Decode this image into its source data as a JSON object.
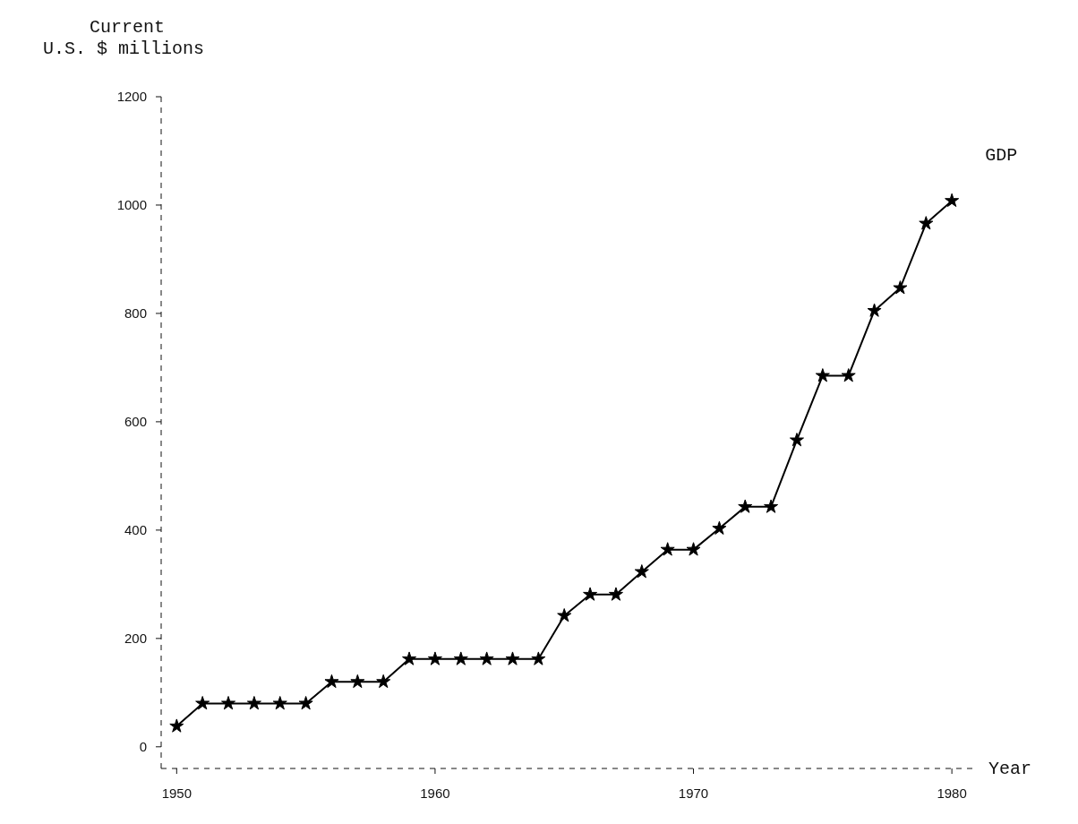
{
  "chart_data": {
    "type": "line",
    "ylabel": "Current\nU.S. $ millions",
    "xlabel": "Year",
    "x": [
      1950,
      1951,
      1952,
      1953,
      1954,
      1955,
      1956,
      1957,
      1958,
      1959,
      1960,
      1961,
      1962,
      1963,
      1964,
      1965,
      1966,
      1967,
      1968,
      1969,
      1970,
      1971,
      1972,
      1973,
      1974,
      1975,
      1976,
      1977,
      1978,
      1979,
      1980
    ],
    "series": [
      {
        "name": "GDP",
        "color": "#000000",
        "values": [
          38,
          80,
          80,
          80,
          80,
          80,
          120,
          120,
          120,
          162,
          162,
          162,
          162,
          162,
          162,
          242,
          281,
          281,
          323,
          364,
          364,
          403,
          443,
          443,
          566,
          685,
          685,
          805,
          847,
          966,
          1008
        ]
      }
    ],
    "xlim": [
      1949.4,
      1981
    ],
    "ylim": [
      -40,
      1200
    ],
    "xticks": [
      1950,
      1960,
      1970,
      1980
    ],
    "yticks": [
      0,
      200,
      400,
      600,
      800,
      1000,
      1200
    ],
    "marker": "star",
    "line_style": "solid"
  }
}
